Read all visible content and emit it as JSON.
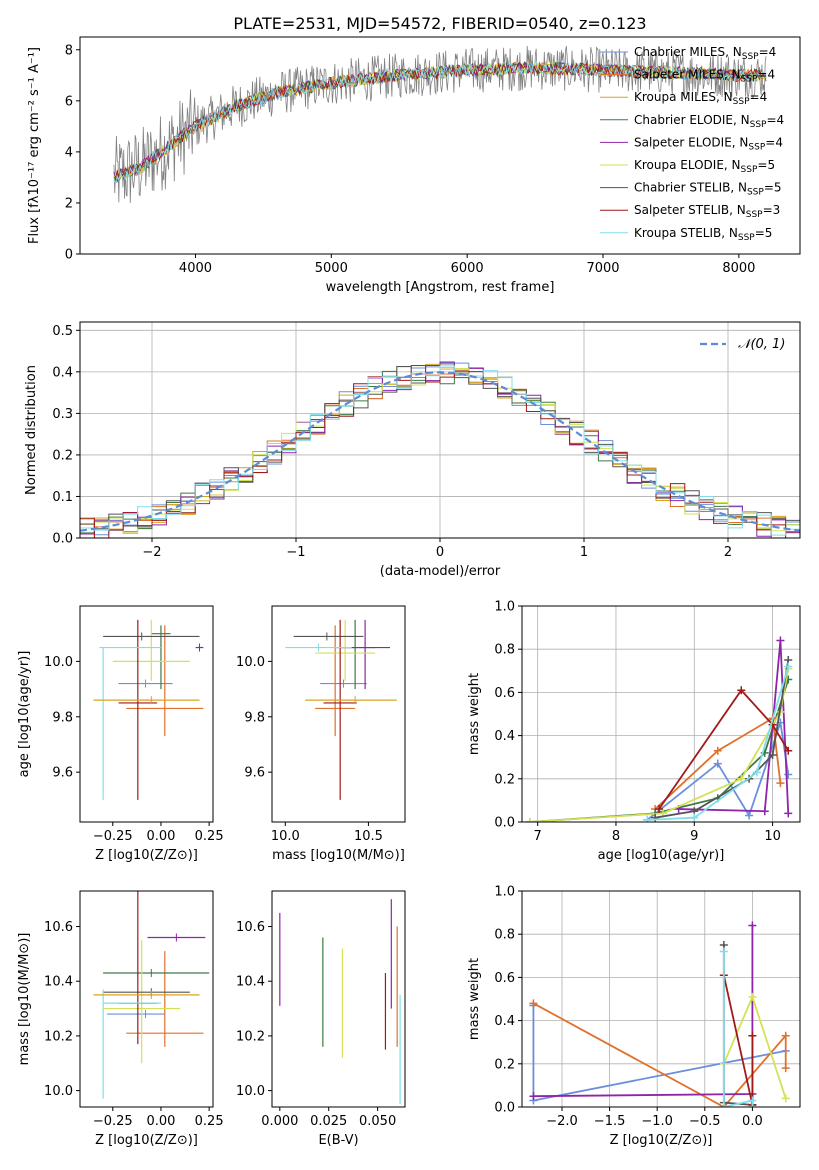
{
  "title": "PLATE=2531, MJD=54572, FIBERID=0540, z=0.123",
  "colors": [
    "#6a8fdc",
    "#e0702a",
    "#d9a21b",
    "#3d7a46",
    "#8e24aa",
    "#d4e157",
    "#555555",
    "#a11a1a",
    "#80deea"
  ],
  "chart_data": [
    {
      "id": "spectrum",
      "type": "line",
      "title": "PLATE=2531, MJD=54572, FIBERID=0540, z=0.123",
      "xlabel": "wavelength [Angstrom, rest frame]",
      "ylabel": "Flux [fλ10⁻¹⁷ erg cm⁻² s⁻¹ A⁻¹]",
      "xlim": [
        3150,
        8450
      ],
      "ylim": [
        0,
        8.5
      ],
      "xticks": [
        4000,
        5000,
        6000,
        7000,
        8000
      ],
      "yticks": [
        0,
        2,
        4,
        6,
        8
      ],
      "data_color": "#808080",
      "data_envelope": {
        "x": [
          3400,
          3600,
          3800,
          4000,
          4300,
          4600,
          5000,
          5500,
          6000,
          6500,
          7000,
          7500,
          8000,
          8200
        ],
        "y": [
          3.0,
          3.4,
          4.2,
          5.0,
          5.8,
          6.3,
          6.7,
          7.0,
          7.2,
          7.3,
          7.2,
          7.1,
          7.0,
          7.0
        ]
      },
      "legend": [
        "Chabrier MILES, N_SSP=4",
        "Salpeter MILES, N_SSP=4",
        "Kroupa MILES, N_SSP=4",
        "Chabrier ELODIE, N_SSP=4",
        "Salpeter ELODIE, N_SSP=4",
        "Kroupa ELODIE, N_SSP=5",
        "Chabrier STELIB, N_SSP=5",
        "Salpeter STELIB, N_SSP=3",
        "Kroupa STELIB, N_SSP=5"
      ],
      "grid": false
    },
    {
      "id": "residuals",
      "type": "histogram",
      "xlabel": "(data-model)/error",
      "ylabel": "Normed distribution",
      "xlim": [
        -2.5,
        2.5
      ],
      "ylim": [
        0,
        0.52
      ],
      "xticks": [
        -2,
        -1,
        0,
        1,
        2
      ],
      "yticks": [
        0.0,
        0.1,
        0.2,
        0.3,
        0.4,
        0.5
      ],
      "legend": [
        "𝒩(0, 1)"
      ],
      "legend_position": "top-right",
      "grid": true
    },
    {
      "id": "age-vs-Z",
      "type": "errorbar",
      "xlabel": "Z [log10(Z/Z⊙)]",
      "ylabel": "age  [log10(age/yr)]",
      "xlim": [
        -0.42,
        0.27
      ],
      "ylim": [
        9.42,
        10.2
      ],
      "xticks": [
        -0.25,
        0.0,
        0.25
      ],
      "yticks": [
        9.6,
        9.8,
        10.0
      ],
      "points": [
        {
          "x": -0.08,
          "y": 9.92,
          "xerr": [
            0.14,
            0.14
          ],
          "yerr": [
            0.0,
            0.0
          ],
          "c": 0
        },
        {
          "x": 0.02,
          "y": 9.83,
          "xerr": [
            0.2,
            0.2
          ],
          "yerr": [
            0.1,
            0.3
          ],
          "c": 1
        },
        {
          "x": 0.0,
          "y": 10.1,
          "xerr": [
            0.05,
            0.05
          ],
          "yerr": [
            0.2,
            0.03
          ],
          "c": 3
        },
        {
          "x": 0.2,
          "y": 10.05,
          "xerr": [
            0.02,
            0.02
          ],
          "yerr": [
            0.0,
            0.0
          ],
          "c": 4
        },
        {
          "x": -0.05,
          "y": 10.0,
          "xerr": [
            0.2,
            0.2
          ],
          "yerr": [
            0.07,
            0.15
          ],
          "c": 5
        },
        {
          "x": -0.1,
          "y": 10.09,
          "xerr": [
            0.2,
            0.3
          ],
          "yerr": [
            0.0,
            0.0
          ],
          "c": 6
        },
        {
          "x": -0.12,
          "y": 9.85,
          "xerr": [
            0.1,
            0.1
          ],
          "yerr": [
            0.35,
            0.3
          ],
          "c": 7
        },
        {
          "x": -0.3,
          "y": 10.05,
          "xerr": [
            0.02,
            0.3
          ],
          "yerr": [
            0.55,
            0.0
          ],
          "c": 8
        },
        {
          "x": -0.05,
          "y": 9.86,
          "xerr": [
            0.3,
            0.25
          ],
          "yerr": [
            0.0,
            0.0
          ],
          "c": 2
        }
      ]
    },
    {
      "id": "age-vs-mass",
      "type": "errorbar",
      "xlabel": "mass [log10(M/M⊙)]",
      "ylabel": "",
      "xlim": [
        9.92,
        10.72
      ],
      "ylim": [
        9.42,
        10.2
      ],
      "xticks": [
        10.0,
        10.5
      ],
      "yticks": [
        9.6,
        9.8,
        10.0
      ],
      "points": [
        {
          "x": 10.35,
          "y": 9.92,
          "xerr": [
            0.14,
            0.14
          ],
          "yerr": [
            0.0,
            0.0
          ],
          "c": 0
        },
        {
          "x": 10.3,
          "y": 9.83,
          "xerr": [
            0.12,
            0.12
          ],
          "yerr": [
            0.1,
            0.3
          ],
          "c": 1
        },
        {
          "x": 10.42,
          "y": 10.05,
          "xerr": [
            0.12,
            0.12
          ],
          "yerr": [
            0.15,
            0.1
          ],
          "c": 3
        },
        {
          "x": 10.48,
          "y": 10.05,
          "xerr": [
            0.15,
            0.15
          ],
          "yerr": [
            0.15,
            0.1
          ],
          "c": 4
        },
        {
          "x": 10.36,
          "y": 10.03,
          "xerr": [
            0.18,
            0.18
          ],
          "yerr": [
            0.1,
            0.12
          ],
          "c": 5
        },
        {
          "x": 10.25,
          "y": 10.09,
          "xerr": [
            0.2,
            0.22
          ],
          "yerr": [
            0.0,
            0.0
          ],
          "c": 6
        },
        {
          "x": 10.33,
          "y": 9.85,
          "xerr": [
            0.1,
            0.1
          ],
          "yerr": [
            0.35,
            0.3
          ],
          "c": 7
        },
        {
          "x": 10.2,
          "y": 10.05,
          "xerr": [
            0.2,
            0.2
          ],
          "yerr": [
            0.0,
            0.0
          ],
          "c": 8
        },
        {
          "x": 10.42,
          "y": 9.86,
          "xerr": [
            0.3,
            0.25
          ],
          "yerr": [
            0.0,
            0.0
          ],
          "c": 2
        }
      ]
    },
    {
      "id": "massweight-vs-age",
      "type": "line",
      "xlabel": "age  [log10(age/yr)]",
      "ylabel": "mass weight",
      "xlim": [
        6.8,
        10.35
      ],
      "ylim": [
        0,
        1.0
      ],
      "xticks": [
        7,
        8,
        9,
        10
      ],
      "yticks": [
        0.0,
        0.2,
        0.4,
        0.6,
        0.8,
        1.0
      ],
      "series": [
        {
          "c": 0,
          "x": [
            8.4,
            9.3,
            9.7,
            10.1,
            10.2
          ],
          "y": [
            0.01,
            0.27,
            0.03,
            0.46,
            0.22
          ]
        },
        {
          "c": 1,
          "x": [
            8.5,
            9.3,
            10.0,
            10.1
          ],
          "y": [
            0.06,
            0.33,
            0.48,
            0.18
          ]
        },
        {
          "c": 3,
          "x": [
            6.9,
            8.5,
            9.3,
            9.9,
            10.2
          ],
          "y": [
            0.0,
            0.04,
            0.11,
            0.32,
            0.66
          ]
        },
        {
          "c": 4,
          "x": [
            8.8,
            9.9,
            10.1,
            10.2
          ],
          "y": [
            0.06,
            0.05,
            0.84,
            0.04
          ]
        },
        {
          "c": 5,
          "x": [
            6.9,
            8.6,
            9.6,
            10.1,
            10.2
          ],
          "y": [
            0.0,
            0.04,
            0.2,
            0.51,
            0.71
          ]
        },
        {
          "c": 6,
          "x": [
            8.5,
            9.0,
            9.7,
            10.0,
            10.2
          ],
          "y": [
            0.02,
            0.05,
            0.2,
            0.31,
            0.75
          ]
        },
        {
          "c": 7,
          "x": [
            8.55,
            9.6,
            10.0,
            10.2
          ],
          "y": [
            0.06,
            0.61,
            0.45,
            0.33
          ]
        },
        {
          "c": 8,
          "x": [
            8.4,
            9.0,
            9.8,
            10.2
          ],
          "y": [
            0.01,
            0.02,
            0.23,
            0.72
          ]
        }
      ],
      "grid": true
    },
    {
      "id": "mass-vs-Z",
      "type": "errorbar",
      "xlabel": "Z [log10(Z/Z⊙)]",
      "ylabel": "mass [log10(M/M⊙)]",
      "xlim": [
        -0.42,
        0.27
      ],
      "ylim": [
        9.94,
        10.73
      ],
      "xticks": [
        -0.25,
        0.0,
        0.25
      ],
      "yticks": [
        10.0,
        10.2,
        10.4,
        10.6
      ],
      "points": [
        {
          "x": -0.08,
          "y": 10.28,
          "xerr": [
            0.2,
            0.1
          ],
          "yerr": [
            0.0,
            0.0
          ],
          "c": 0
        },
        {
          "x": 0.02,
          "y": 10.21,
          "xerr": [
            0.2,
            0.2
          ],
          "yerr": [
            0.05,
            0.3
          ],
          "c": 1
        },
        {
          "x": -0.05,
          "y": 10.43,
          "xerr": [
            0.25,
            0.3
          ],
          "yerr": [
            0.0,
            0.0
          ],
          "c": 3
        },
        {
          "x": 0.08,
          "y": 10.56,
          "xerr": [
            0.15,
            0.15
          ],
          "yerr": [
            0.0,
            0.0
          ],
          "c": 4
        },
        {
          "x": -0.1,
          "y": 10.3,
          "xerr": [
            0.2,
            0.2
          ],
          "yerr": [
            0.2,
            0.25
          ],
          "c": 5
        },
        {
          "x": -0.05,
          "y": 10.36,
          "xerr": [
            0.25,
            0.2
          ],
          "yerr": [
            0.0,
            0.0
          ],
          "c": 6
        },
        {
          "x": -0.12,
          "y": 10.32,
          "xerr": [
            0.1,
            0.1
          ],
          "yerr": [
            0.15,
            0.7
          ],
          "c": 7
        },
        {
          "x": -0.3,
          "y": 10.32,
          "xerr": [
            0.0,
            0.3
          ],
          "yerr": [
            0.35,
            0.05
          ],
          "c": 8
        },
        {
          "x": -0.05,
          "y": 10.35,
          "xerr": [
            0.3,
            0.25
          ],
          "yerr": [
            0.0,
            0.0
          ],
          "c": 2
        }
      ]
    },
    {
      "id": "mass-vs-EBV",
      "type": "errorbar",
      "xlabel": "E(B-V)",
      "ylabel": "",
      "xlim": [
        -0.004,
        0.064
      ],
      "ylim": [
        9.94,
        10.73
      ],
      "xticks": [
        0.0,
        0.025,
        0.05
      ],
      "yticks": [
        10.0,
        10.2,
        10.4,
        10.6
      ],
      "points": [
        {
          "x": 0.0,
          "y": 10.48,
          "xerr": [
            0,
            0
          ],
          "yerr": [
            0.17,
            0.17
          ],
          "c": 4
        },
        {
          "x": 0.022,
          "y": 10.36,
          "xerr": [
            0,
            0
          ],
          "yerr": [
            0.2,
            0.2
          ],
          "c": 3
        },
        {
          "x": 0.032,
          "y": 10.32,
          "xerr": [
            0,
            0
          ],
          "yerr": [
            0.2,
            0.2
          ],
          "c": 5
        },
        {
          "x": 0.054,
          "y": 10.29,
          "xerr": [
            0,
            0
          ],
          "yerr": [
            0.14,
            0.14
          ],
          "c": 7
        },
        {
          "x": 0.057,
          "y": 10.5,
          "xerr": [
            0,
            0
          ],
          "yerr": [
            0.2,
            0.2
          ],
          "c": 4
        },
        {
          "x": 0.06,
          "y": 10.38,
          "xerr": [
            0,
            0
          ],
          "yerr": [
            0.22,
            0.22
          ],
          "c": 1
        },
        {
          "x": 0.0615,
          "y": 10.15,
          "xerr": [
            0,
            0
          ],
          "yerr": [
            0.2,
            0.2
          ],
          "c": 8
        }
      ]
    },
    {
      "id": "massweight-vs-Z",
      "type": "line",
      "xlabel": "Z [log10(Z/Z⊙)]",
      "ylabel": "mass weight",
      "xlim": [
        -2.42,
        0.5
      ],
      "ylim": [
        0,
        1.0
      ],
      "xticks": [
        -2.0,
        -1.5,
        -1.0,
        -0.5,
        0.0
      ],
      "yticks": [
        0.0,
        0.2,
        0.4,
        0.6,
        0.8,
        1.0
      ],
      "series": [
        {
          "c": 0,
          "x": [
            -2.3,
            -2.3,
            0.35
          ],
          "y": [
            0.47,
            0.03,
            0.26
          ]
        },
        {
          "c": 1,
          "x": [
            -2.3,
            -0.3,
            0.35,
            0.35
          ],
          "y": [
            0.48,
            0.0,
            0.33,
            0.18
          ]
        },
        {
          "c": 4,
          "x": [
            -2.3,
            0.0,
            0.0,
            0.0
          ],
          "y": [
            0.05,
            0.06,
            0.84,
            0.01
          ]
        },
        {
          "c": 5,
          "x": [
            -0.3,
            0.0,
            0.35
          ],
          "y": [
            0.2,
            0.51,
            0.04
          ]
        },
        {
          "c": 6,
          "x": [
            -0.3,
            -0.3,
            0.0
          ],
          "y": [
            0.75,
            0.02,
            0.01
          ]
        },
        {
          "c": 7,
          "x": [
            -0.3,
            0.0,
            0.0
          ],
          "y": [
            0.61,
            0.01,
            0.33
          ]
        },
        {
          "c": 8,
          "x": [
            -0.3,
            -0.3,
            0.0,
            0.0
          ],
          "y": [
            0.72,
            0.0,
            0.03,
            0.0
          ]
        }
      ],
      "grid": true
    }
  ]
}
